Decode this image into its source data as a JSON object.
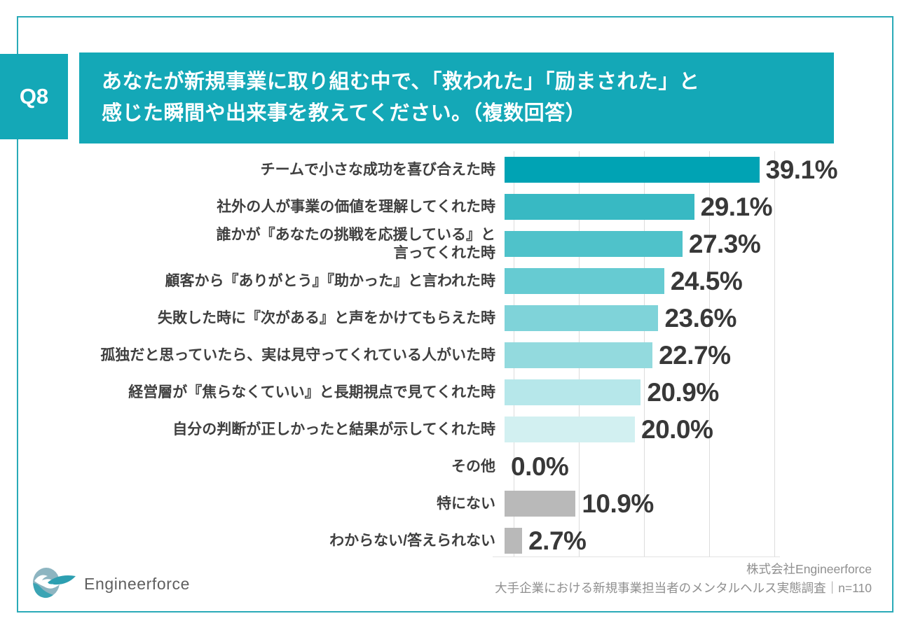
{
  "page": {
    "question_tag": "Q8",
    "question_title": "あなたが新規事業に取り組む中で、「救われた」「励まされた」と\n感じた瞬間や出来事を教えてください。（複数回答）",
    "accent_color": "#14a8b7",
    "frame_border_color": "#2aaab8"
  },
  "chart_data": {
    "type": "bar",
    "orientation": "horizontal",
    "unit": "%",
    "xlim": [
      0,
      40
    ],
    "gridline_interval": 10,
    "grid": true,
    "categories": [
      "チームで小さな成功を喜び合えた時",
      "社外の人が事業の価値を理解してくれた時",
      "誰かが『あなたの挑戦を応援している』と\n言ってくれた時",
      "顧客から『ありがとう』『助かった』と言われた時",
      "失敗した時に『次がある』と声をかけてもらえた時",
      "孤独だと思っていたら、実は見守ってくれている人がいた時",
      "経営層が『焦らなくていい』と長期視点で見てくれた時",
      "自分の判断が正しかったと結果が示してくれた時",
      "その他",
      "特にない",
      "わからない/答えられない"
    ],
    "values": [
      39.1,
      29.1,
      27.3,
      24.5,
      23.6,
      22.7,
      20.9,
      20.0,
      0.0,
      10.9,
      2.7
    ],
    "value_labels": [
      "39.1%",
      "29.1%",
      "27.3%",
      "24.5%",
      "23.6%",
      "22.7%",
      "20.9%",
      "20.0%",
      "0.0%",
      "10.9%",
      "2.7%"
    ],
    "bar_colors": [
      "#00a3b4",
      "#38b9c3",
      "#4fc2ca",
      "#66cbd2",
      "#7fd3d9",
      "#93dade",
      "#b6e7ea",
      "#d2f0f1",
      "#b9b9b9",
      "#b9b9b9",
      "#b9b9b9"
    ]
  },
  "footer": {
    "logo_text": "Engineerforce",
    "source_line1": "株式会社Engineerforce",
    "source_line2": "大手企業における新規事業担当者のメンタルヘルス実態調査｜n=110"
  }
}
